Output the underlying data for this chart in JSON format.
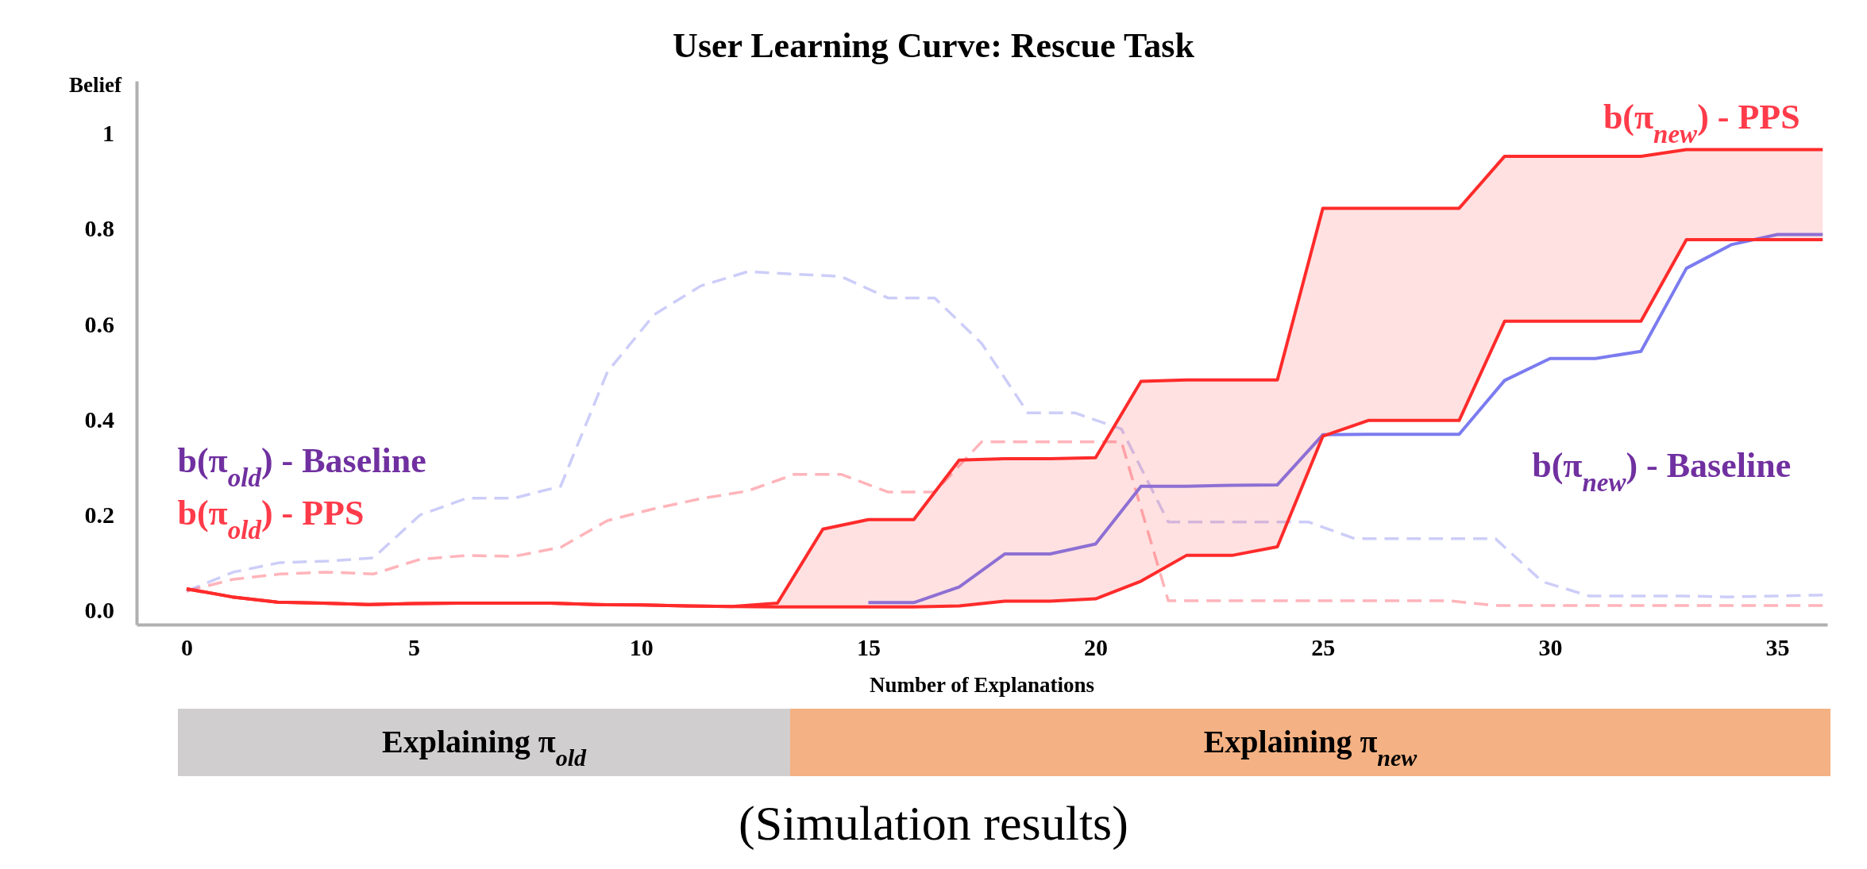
{
  "chart_data": {
    "type": "line",
    "title": "User Learning Curve: Rescue Task",
    "xlabel": "Number of Explanations",
    "ylabel": "Belief",
    "xlim": [
      -1.1,
      36.1
    ],
    "xticks": [
      0,
      5,
      10,
      15,
      20,
      25,
      30,
      35
    ],
    "ylim": [
      -0.03,
      1.11
    ],
    "yticks": [
      {
        "value": 0,
        "label": "0.0"
      },
      0.2,
      0.4,
      0.6,
      0.8,
      1
    ],
    "x": [
      0,
      1,
      2,
      3,
      4,
      5,
      6,
      7,
      8,
      9,
      10,
      11,
      12,
      13,
      14,
      15,
      16,
      17,
      18,
      19,
      20,
      21,
      22,
      23,
      24,
      25,
      26,
      27,
      28,
      29,
      30,
      31,
      32,
      33,
      34,
      35,
      36
    ],
    "series": [
      {
        "name": "b(π$_{old}$) - Baseline",
        "color": "#7b7bf0",
        "line_style": "dashed",
        "x": [
          0,
          1.03,
          2.06,
          3.09,
          4.11,
          5.14,
          6.17,
          7.2,
          8.23,
          9.26,
          10.29,
          11.31,
          12.34,
          13.37,
          14.4,
          15.43,
          16.46,
          17.49,
          18.51,
          19.54,
          20.57,
          21.6,
          22.63,
          23.66,
          24.69,
          25.71,
          26.74,
          27.77,
          28.8,
          29.83,
          30.86,
          31.89,
          32.91,
          33.94,
          34.97,
          36
        ],
        "values": [
          0.04,
          0.08,
          0.1,
          0.103,
          0.11,
          0.2,
          0.235,
          0.235,
          0.26,
          0.5,
          0.62,
          0.68,
          0.71,
          0.705,
          0.7,
          0.655,
          0.655,
          0.56,
          0.414,
          0.414,
          0.38,
          0.185,
          0.185,
          0.185,
          0.185,
          0.15,
          0.15,
          0.15,
          0.15,
          0.06,
          0.03,
          0.03,
          0.03,
          0.028,
          0.03,
          0.032
        ]
      },
      {
        "name": "b(π$_{old}$) - PPS",
        "color": "#ff3b4a",
        "line_style": "dashed",
        "x": [
          0,
          1.03,
          2.06,
          3.09,
          4.11,
          5.14,
          6.17,
          7.2,
          8.23,
          9.26,
          10.29,
          11.31,
          12.34,
          13.37,
          14.4,
          15.43,
          16.46,
          17.49,
          18.51,
          19.54,
          20.57,
          21.6,
          22.63,
          23.66,
          24.69,
          25.71,
          26.74,
          27.77,
          28.8,
          29.83,
          30.86,
          31.89,
          32.91,
          33.94,
          34.97,
          36
        ],
        "values": [
          0.04,
          0.065,
          0.076,
          0.08,
          0.076,
          0.107,
          0.115,
          0.113,
          0.132,
          0.188,
          0.213,
          0.234,
          0.25,
          0.285,
          0.285,
          0.248,
          0.248,
          0.353,
          0.353,
          0.353,
          0.353,
          0.02,
          0.02,
          0.02,
          0.02,
          0.02,
          0.02,
          0.02,
          0.01,
          0.01,
          0.01,
          0.01,
          0.01,
          0.01,
          0.01,
          0.01
        ]
      },
      {
        "name": "b(π$_{new}$) - Baseline",
        "color": "#7b7bf0",
        "line_style": "solid",
        "values": [
          null,
          null,
          null,
          null,
          null,
          null,
          null,
          null,
          null,
          null,
          null,
          null,
          null,
          null,
          null,
          0.016,
          0.016,
          0.049,
          0.118,
          0.118,
          0.139,
          0.26,
          0.26,
          0.262,
          0.263,
          0.368,
          0.369,
          0.369,
          0.369,
          0.482,
          0.528,
          0.528,
          0.543,
          0.717,
          0.767,
          0.788,
          0.788
        ]
      },
      {
        "name": "b(π$_{new}$) - PPS",
        "color": "#ff2b2b",
        "line_style": "solid",
        "values": [
          0.045,
          0.028,
          0.017,
          0.015,
          0.012,
          0.014,
          0.015,
          0.015,
          0.015,
          0.012,
          0.011,
          0.009,
          0.008,
          0.015,
          0.17,
          0.19,
          0.19,
          0.315,
          0.318,
          0.318,
          0.32,
          0.48,
          0.483,
          0.483,
          0.483,
          0.843,
          0.843,
          0.843,
          0.843,
          0.952,
          0.952,
          0.952,
          0.952,
          0.966,
          0.966,
          0.966,
          0.966
        ],
        "lower": [
          0.045,
          0.028,
          0.017,
          0.015,
          0.012,
          0.014,
          0.015,
          0.015,
          0.015,
          0.012,
          0.011,
          0.009,
          0.008,
          0.007,
          0.007,
          0.007,
          0.007,
          0.009,
          0.019,
          0.019,
          0.024,
          0.061,
          0.115,
          0.115,
          0.133,
          0.365,
          0.398,
          0.398,
          0.398,
          0.606,
          0.606,
          0.606,
          0.606,
          0.777,
          0.777,
          0.777,
          0.777
        ],
        "upper": [
          0.045,
          0.028,
          0.017,
          0.015,
          0.012,
          0.014,
          0.015,
          0.015,
          0.015,
          0.012,
          0.011,
          0.009,
          0.008,
          0.015,
          0.17,
          0.19,
          0.19,
          0.315,
          0.318,
          0.318,
          0.32,
          0.48,
          0.483,
          0.483,
          0.483,
          0.843,
          0.843,
          0.843,
          0.843,
          0.952,
          0.952,
          0.952,
          0.952,
          0.966,
          0.966,
          0.966,
          0.966
        ]
      },
      {
        "color": "#ff2b2b",
        "line_style": "solid",
        "values": [
          0.045,
          0.028,
          0.017,
          0.015,
          0.012,
          0.014,
          0.015,
          0.015,
          0.015,
          0.012,
          0.011,
          0.009,
          0.008,
          0.007,
          0.007,
          0.007,
          0.007,
          0.009,
          0.019,
          0.019,
          0.024,
          0.061,
          0.115,
          0.115,
          0.133,
          0.365,
          0.398,
          0.398,
          0.398,
          0.606,
          0.606,
          0.606,
          0.606,
          0.777,
          0.777,
          0.777,
          0.777
        ]
      }
    ],
    "annotations": [
      "Explaining π$_{old}$",
      "Explaining π$_{new}$",
      "(Simulation results)"
    ]
  }
}
